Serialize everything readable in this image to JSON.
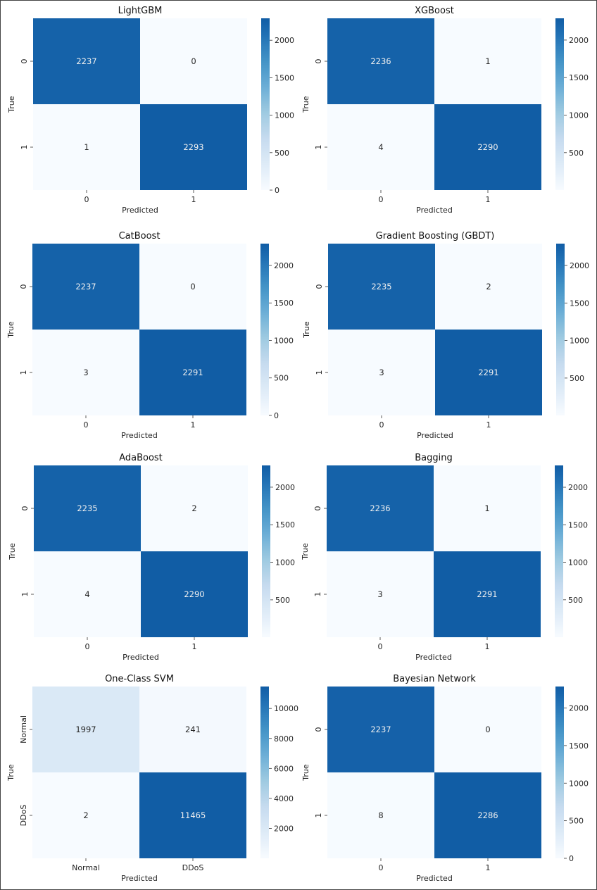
{
  "colormap": {
    "name": "Blues",
    "stops": [
      "#f7fbff",
      "#deebf7",
      "#c6dbef",
      "#9ecae1",
      "#6baed6",
      "#4292c6",
      "#2171b5",
      "#08519c",
      "#08306b"
    ],
    "upper_clip": 0.83
  },
  "chart_data": [
    {
      "type": "heatmap",
      "title": "LightGBM",
      "xlabel": "Predicted",
      "ylabel": "True",
      "x_ticks": [
        "0",
        "1"
      ],
      "y_ticks": [
        "0",
        "1"
      ],
      "matrix": [
        [
          2237,
          0
        ],
        [
          1,
          2293
        ]
      ],
      "cell_labels": [
        [
          "2237",
          "0"
        ],
        [
          "1",
          "2293"
        ]
      ],
      "colorbar_ticks": [
        0,
        500,
        1000,
        1500,
        2000
      ],
      "colorbar_tick_labels": [
        "0",
        "500",
        "1000",
        "1500",
        "2000"
      ],
      "vmin": 0,
      "vmax": 2293
    },
    {
      "type": "heatmap",
      "title": "XGBoost",
      "xlabel": "Predicted",
      "ylabel": "True",
      "x_ticks": [
        "0",
        "1"
      ],
      "y_ticks": [
        "0",
        "1"
      ],
      "matrix": [
        [
          2236,
          1
        ],
        [
          4,
          2290
        ]
      ],
      "cell_labels": [
        [
          "2236",
          "1"
        ],
        [
          "4",
          "2290"
        ]
      ],
      "colorbar_ticks": [
        500,
        1000,
        1500,
        2000
      ],
      "colorbar_tick_labels": [
        "500",
        "1000",
        "1500",
        "2000"
      ],
      "vmin": 1,
      "vmax": 2290
    },
    {
      "type": "heatmap",
      "title": "CatBoost",
      "xlabel": "Predicted",
      "ylabel": "True",
      "x_ticks": [
        "0",
        "1"
      ],
      "y_ticks": [
        "0",
        "1"
      ],
      "matrix": [
        [
          2237,
          0
        ],
        [
          3,
          2291
        ]
      ],
      "cell_labels": [
        [
          "2237",
          "0"
        ],
        [
          "3",
          "2291"
        ]
      ],
      "colorbar_ticks": [
        0,
        500,
        1000,
        1500,
        2000
      ],
      "colorbar_tick_labels": [
        "0",
        "500",
        "1000",
        "1500",
        "2000"
      ],
      "vmin": 0,
      "vmax": 2291
    },
    {
      "type": "heatmap",
      "title": "Gradient Boosting (GBDT)",
      "xlabel": "Predicted",
      "ylabel": "True",
      "x_ticks": [
        "0",
        "1"
      ],
      "y_ticks": [
        "0",
        "1"
      ],
      "matrix": [
        [
          2235,
          2
        ],
        [
          3,
          2291
        ]
      ],
      "cell_labels": [
        [
          "2235",
          "2"
        ],
        [
          "3",
          "2291"
        ]
      ],
      "colorbar_ticks": [
        500,
        1000,
        1500,
        2000
      ],
      "colorbar_tick_labels": [
        "500",
        "1000",
        "1500",
        "2000"
      ],
      "vmin": 2,
      "vmax": 2291
    },
    {
      "type": "heatmap",
      "title": "AdaBoost",
      "xlabel": "Predicted",
      "ylabel": "True",
      "x_ticks": [
        "0",
        "1"
      ],
      "y_ticks": [
        "0",
        "1"
      ],
      "matrix": [
        [
          2235,
          2
        ],
        [
          4,
          2290
        ]
      ],
      "cell_labels": [
        [
          "2235",
          "2"
        ],
        [
          "4",
          "2290"
        ]
      ],
      "colorbar_ticks": [
        500,
        1000,
        1500,
        2000
      ],
      "colorbar_tick_labels": [
        "500",
        "1000",
        "1500",
        "2000"
      ],
      "vmin": 2,
      "vmax": 2290
    },
    {
      "type": "heatmap",
      "title": "Bagging",
      "xlabel": "Predicted",
      "ylabel": "True",
      "x_ticks": [
        "0",
        "1"
      ],
      "y_ticks": [
        "0",
        "1"
      ],
      "matrix": [
        [
          2236,
          1
        ],
        [
          3,
          2291
        ]
      ],
      "cell_labels": [
        [
          "2236",
          "1"
        ],
        [
          "3",
          "2291"
        ]
      ],
      "colorbar_ticks": [
        500,
        1000,
        1500,
        2000
      ],
      "colorbar_tick_labels": [
        "500",
        "1000",
        "1500",
        "2000"
      ],
      "vmin": 1,
      "vmax": 2291
    },
    {
      "type": "heatmap",
      "title": "One-Class SVM",
      "xlabel": "Predicted",
      "ylabel": "True",
      "x_ticks": [
        "Normal",
        "DDoS"
      ],
      "y_ticks": [
        "Normal",
        "DDoS"
      ],
      "matrix": [
        [
          1997,
          241
        ],
        [
          2,
          11465
        ]
      ],
      "cell_labels": [
        [
          "1997",
          "241"
        ],
        [
          "2",
          "11465"
        ]
      ],
      "colorbar_ticks": [
        2000,
        4000,
        6000,
        8000,
        10000
      ],
      "colorbar_tick_labels": [
        "2000",
        "4000",
        "6000",
        "8000",
        "10000"
      ],
      "vmin": 2,
      "vmax": 11465
    },
    {
      "type": "heatmap",
      "title": "Bayesian Network",
      "xlabel": "Predicted",
      "ylabel": "True",
      "x_ticks": [
        "0",
        "1"
      ],
      "y_ticks": [
        "0",
        "1"
      ],
      "matrix": [
        [
          2237,
          0
        ],
        [
          8,
          2286
        ]
      ],
      "cell_labels": [
        [
          "2237",
          "0"
        ],
        [
          "8",
          "2286"
        ]
      ],
      "colorbar_ticks": [
        0,
        500,
        1000,
        1500,
        2000
      ],
      "colorbar_tick_labels": [
        "0",
        "500",
        "1000",
        "1500",
        "2000"
      ],
      "vmin": 0,
      "vmax": 2286
    }
  ]
}
